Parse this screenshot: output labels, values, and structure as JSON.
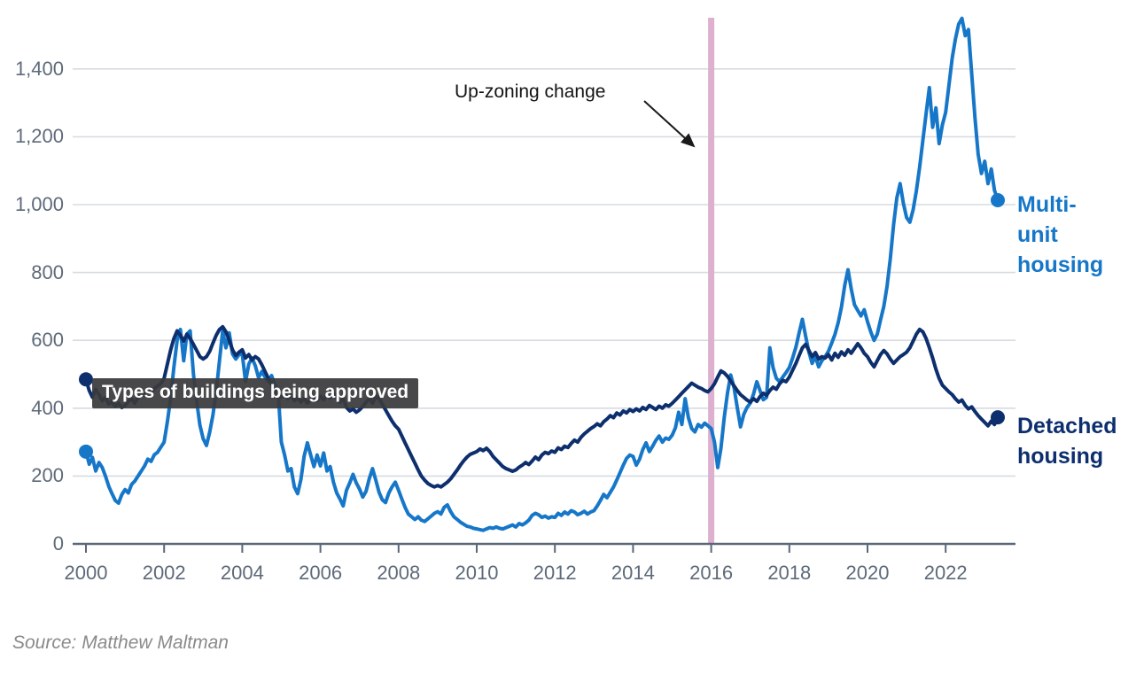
{
  "title": "Types of buildings being approved",
  "annotation": {
    "label": "Up-zoning change"
  },
  "series_labels": {
    "multi_lines": [
      "Multi-",
      "unit",
      "housing"
    ],
    "detached_lines": [
      "Detached",
      "housing"
    ]
  },
  "source": "Source: Matthew Maltman",
  "colors": {
    "multi_unit": "#1677c9",
    "detached": "#0d2f6e",
    "upzone_line": "#ddb0d0",
    "grid": "#d7dbe0",
    "axis": "#5b6878",
    "tick_text": "#5e6a7a",
    "tooltip_bg": "#3a3a3c",
    "tooltip_text": "#ffffff",
    "annotation_arrow": "#1a1a1a",
    "source_text": "#8a8a8a"
  },
  "chart_data": {
    "type": "line",
    "title": "Types of buildings being approved",
    "x_start_year": 2000,
    "points_per_year": 12,
    "x_end_year_fraction": 2023.42,
    "x_ticks": [
      2000,
      2002,
      2004,
      2006,
      2008,
      2010,
      2012,
      2014,
      2016,
      2018,
      2020,
      2022
    ],
    "y_ticks": [
      0,
      200,
      400,
      600,
      800,
      1000,
      1200,
      1400
    ],
    "ylim": [
      0,
      1560
    ],
    "grid": true,
    "legend_position": "right-edge-labels",
    "annotation_marker": {
      "text": "Up-zoning change",
      "x_year": 2016.0
    },
    "series": [
      {
        "name": "Multi-unit housing",
        "color": "#1677c9",
        "values": [
          272,
          235,
          255,
          215,
          240,
          225,
          200,
          170,
          148,
          128,
          120,
          145,
          160,
          150,
          175,
          185,
          200,
          215,
          230,
          250,
          243,
          263,
          270,
          285,
          300,
          360,
          430,
          520,
          600,
          632,
          540,
          618,
          628,
          500,
          420,
          350,
          310,
          290,
          330,
          380,
          450,
          540,
          628,
          578,
          622,
          560,
          545,
          558,
          560,
          478,
          530,
          548,
          525,
          490,
          508,
          492,
          480,
          496,
          470,
          452,
          300,
          262,
          215,
          222,
          168,
          148,
          190,
          258,
          298,
          262,
          228,
          262,
          230,
          268,
          215,
          228,
          182,
          150,
          132,
          112,
          158,
          180,
          205,
          180,
          162,
          138,
          155,
          192,
          222,
          188,
          152,
          130,
          122,
          150,
          168,
          182,
          158,
          132,
          108,
          88,
          80,
          72,
          80,
          70,
          66,
          74,
          82,
          90,
          95,
          88,
          108,
          115,
          95,
          80,
          72,
          64,
          58,
          52,
          50,
          46,
          44,
          42,
          40,
          44,
          48,
          46,
          50,
          46,
          44,
          48,
          52,
          56,
          50,
          60,
          56,
          62,
          70,
          84,
          90,
          86,
          78,
          82,
          76,
          80,
          78,
          90,
          84,
          94,
          88,
          98,
          94,
          86,
          90,
          96,
          88,
          94,
          98,
          112,
          128,
          146,
          136,
          152,
          168,
          188,
          210,
          232,
          252,
          262,
          258,
          232,
          250,
          278,
          298,
          272,
          288,
          305,
          318,
          300,
          312,
          308,
          320,
          342,
          388,
          352,
          428,
          372,
          340,
          330,
          352,
          344,
          356,
          348,
          340,
          300,
          225,
          282,
          372,
          445,
          498,
          462,
          402,
          345,
          382,
          402,
          415,
          442,
          478,
          452,
          425,
          432,
          578,
          520,
          488,
          478,
          492,
          505,
          520,
          548,
          580,
          622,
          662,
          612,
          565,
          532,
          552,
          522,
          540,
          552,
          568,
          592,
          618,
          652,
          698,
          762,
          808,
          752,
          705,
          688,
          672,
          690,
          655,
          625,
          600,
          618,
          660,
          700,
          760,
          840,
          940,
          1020,
          1062,
          1005,
          962,
          948,
          985,
          1040,
          1110,
          1190,
          1270,
          1345,
          1228,
          1285,
          1180,
          1235,
          1272,
          1352,
          1432,
          1488,
          1532,
          1549,
          1498,
          1516,
          1385,
          1255,
          1148,
          1092,
          1128,
          1062,
          1105,
          1042,
          1013
        ]
      },
      {
        "name": "Detached housing",
        "color": "#0d2f6e",
        "values": [
          485,
          452,
          432,
          455,
          440,
          422,
          432,
          412,
          420,
          405,
          415,
          402,
          408,
          420,
          428,
          415,
          432,
          445,
          438,
          452,
          445,
          458,
          465,
          472,
          488,
          530,
          572,
          605,
          628,
          615,
          598,
          618,
          605,
          588,
          570,
          552,
          545,
          552,
          568,
          592,
          615,
          632,
          640,
          625,
          600,
          572,
          555,
          565,
          572,
          548,
          558,
          542,
          552,
          545,
          528,
          508,
          488,
          468,
          452,
          442,
          432,
          445,
          428,
          440,
          422,
          432,
          418,
          428,
          415,
          425,
          432,
          422,
          435,
          425,
          442,
          430,
          445,
          428,
          418,
          428,
          402,
          392,
          398,
          388,
          395,
          405,
          418,
          428,
          415,
          435,
          428,
          412,
          395,
          378,
          362,
          348,
          338,
          318,
          298,
          278,
          258,
          238,
          218,
          200,
          188,
          178,
          172,
          168,
          172,
          168,
          175,
          182,
          192,
          205,
          218,
          232,
          245,
          256,
          264,
          268,
          272,
          280,
          275,
          282,
          272,
          258,
          248,
          238,
          228,
          222,
          218,
          214,
          218,
          226,
          232,
          240,
          234,
          244,
          256,
          248,
          262,
          270,
          266,
          274,
          270,
          283,
          278,
          288,
          284,
          296,
          306,
          300,
          314,
          324,
          332,
          340,
          346,
          354,
          348,
          360,
          368,
          378,
          372,
          386,
          380,
          392,
          386,
          396,
          390,
          398,
          392,
          402,
          396,
          408,
          402,
          396,
          406,
          400,
          410,
          406,
          414,
          424,
          434,
          444,
          454,
          464,
          474,
          468,
          462,
          458,
          452,
          448,
          458,
          472,
          492,
          510,
          504,
          494,
          480,
          466,
          452,
          440,
          432,
          424,
          418,
          428,
          420,
          434,
          444,
          438,
          452,
          462,
          456,
          472,
          482,
          478,
          492,
          512,
          532,
          555,
          578,
          588,
          570,
          552,
          564,
          545,
          552,
          548,
          558,
          542,
          562,
          550,
          566,
          556,
          572,
          562,
          576,
          590,
          578,
          562,
          552,
          535,
          522,
          540,
          558,
          570,
          560,
          545,
          532,
          542,
          552,
          558,
          565,
          578,
          598,
          618,
          632,
          625,
          605,
          578,
          548,
          515,
          488,
          468,
          458,
          448,
          440,
          428,
          418,
          424,
          408,
          398,
          404,
          390,
          378,
          368,
          358,
          348,
          362,
          352,
          373
        ]
      }
    ]
  }
}
